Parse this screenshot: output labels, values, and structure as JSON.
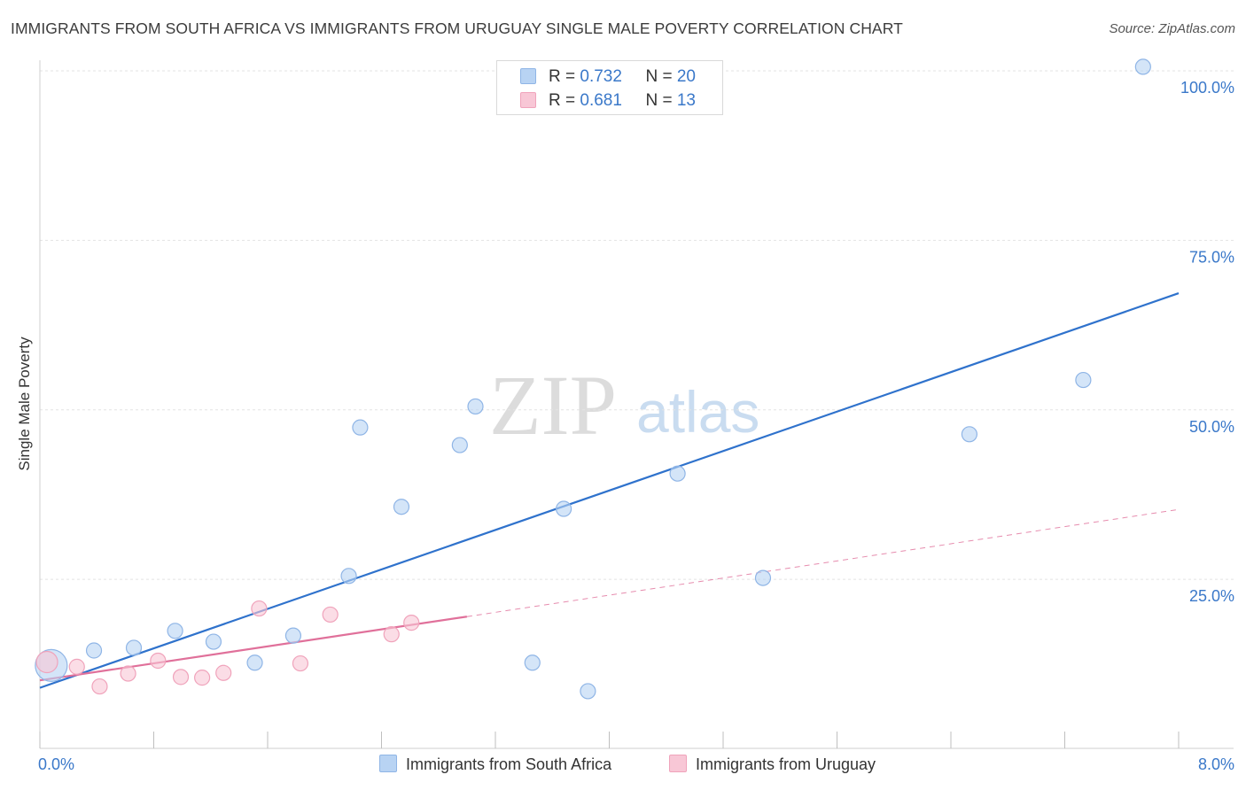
{
  "title": "IMMIGRANTS FROM SOUTH AFRICA VS IMMIGRANTS FROM URUGUAY SINGLE MALE POVERTY CORRELATION CHART",
  "source": "Source: ZipAtlas.com",
  "watermark": {
    "zip": "ZIP",
    "atlas": "atlas"
  },
  "legend": {
    "rows": [
      {
        "r_label": "R = ",
        "r_value": "0.732",
        "n_label": "N = ",
        "n_value": "20"
      },
      {
        "r_label": "R = ",
        "r_value": "0.681",
        "n_label": "N = ",
        "n_value": "13"
      }
    ]
  },
  "colors": {
    "blue_fill": "#b8d3f3",
    "blue_stroke": "#8fb5e6",
    "blue_line": "#2f72cc",
    "pink_fill": "#f8c7d6",
    "pink_stroke": "#f0a3bb",
    "pink_line": "#e0709a",
    "grid": "#e3e3e3",
    "axis_label": "#3a78c9"
  },
  "chart_data": {
    "type": "scatter",
    "title": "IMMIGRANTS FROM SOUTH AFRICA VS IMMIGRANTS FROM URUGUAY SINGLE MALE POVERTY CORRELATION CHART",
    "xlabel": "",
    "ylabel": "Single Male Poverty",
    "xlim": [
      0,
      8
    ],
    "ylim": [
      0,
      100
    ],
    "x_tick_labels": [
      "0.0%",
      "8.0%"
    ],
    "y_ticks": [
      25,
      50,
      75,
      100
    ],
    "y_tick_labels": [
      "25.0%",
      "50.0%",
      "75.0%",
      "100.0%"
    ],
    "grid": true,
    "series": [
      {
        "name": "Immigrants from South Africa",
        "color": "#b8d3f3",
        "points": [
          {
            "x": 0.08,
            "y": 12.3
          },
          {
            "x": 0.38,
            "y": 14.5
          },
          {
            "x": 0.66,
            "y": 14.9
          },
          {
            "x": 0.95,
            "y": 17.4
          },
          {
            "x": 1.22,
            "y": 15.8
          },
          {
            "x": 1.51,
            "y": 12.7
          },
          {
            "x": 1.78,
            "y": 16.7
          },
          {
            "x": 2.17,
            "y": 25.5
          },
          {
            "x": 2.25,
            "y": 47.4
          },
          {
            "x": 2.54,
            "y": 35.7
          },
          {
            "x": 2.95,
            "y": 44.8
          },
          {
            "x": 3.06,
            "y": 50.5
          },
          {
            "x": 3.46,
            "y": 12.7
          },
          {
            "x": 3.68,
            "y": 35.4
          },
          {
            "x": 3.85,
            "y": 8.5
          },
          {
            "x": 4.48,
            "y": 40.6
          },
          {
            "x": 5.08,
            "y": 25.2
          },
          {
            "x": 6.53,
            "y": 46.4
          },
          {
            "x": 7.33,
            "y": 54.4
          },
          {
            "x": 7.75,
            "y": 100.6
          }
        ],
        "trend": {
          "x": [
            0.0,
            8.0
          ],
          "y": [
            9.0,
            67.2
          ]
        }
      },
      {
        "name": "Immigrants from Uruguay",
        "color": "#f8c7d6",
        "points": [
          {
            "x": 0.05,
            "y": 12.8
          },
          {
            "x": 0.26,
            "y": 12.1
          },
          {
            "x": 0.42,
            "y": 9.2
          },
          {
            "x": 0.62,
            "y": 11.1
          },
          {
            "x": 0.83,
            "y": 13.0
          },
          {
            "x": 0.99,
            "y": 10.6
          },
          {
            "x": 1.14,
            "y": 10.5
          },
          {
            "x": 1.29,
            "y": 11.2
          },
          {
            "x": 1.54,
            "y": 20.7
          },
          {
            "x": 1.83,
            "y": 12.6
          },
          {
            "x": 2.04,
            "y": 19.8
          },
          {
            "x": 2.47,
            "y": 16.9
          },
          {
            "x": 2.61,
            "y": 18.6
          }
        ],
        "trend": {
          "x": [
            0.0,
            3.0
          ],
          "y": [
            10.1,
            19.5
          ],
          "dashed_extension_to": [
            8.0,
            35.3
          ]
        }
      }
    ]
  }
}
